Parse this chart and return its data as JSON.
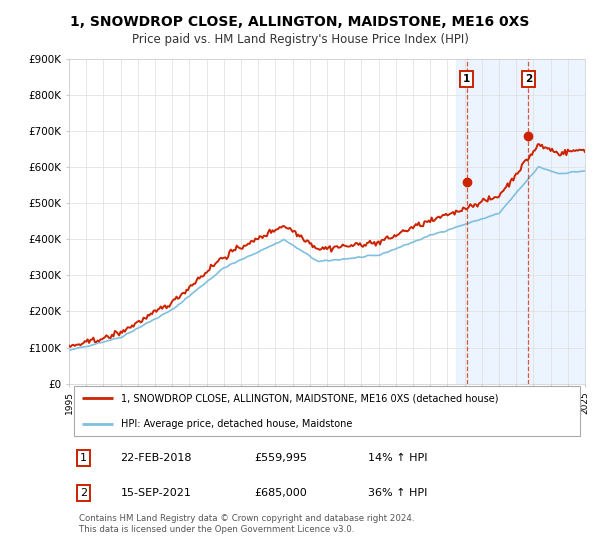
{
  "title": "1, SNOWDROP CLOSE, ALLINGTON, MAIDSTONE, ME16 0XS",
  "subtitle": "Price paid vs. HM Land Registry's House Price Index (HPI)",
  "ylim": [
    0,
    900000
  ],
  "yticks": [
    0,
    100000,
    200000,
    300000,
    400000,
    500000,
    600000,
    700000,
    800000,
    900000
  ],
  "ytick_labels": [
    "£0",
    "£100K",
    "£200K",
    "£300K",
    "£400K",
    "£500K",
    "£600K",
    "£700K",
    "£800K",
    "£900K"
  ],
  "hpi_color": "#7fbfdf",
  "price_color": "#cc2200",
  "marker1_date": 2018.12,
  "marker1_price": 559995,
  "marker2_date": 2021.71,
  "marker2_price": 685000,
  "shaded_color": "#ddeeff",
  "shaded_alpha": 0.55,
  "legend_line1": "1, SNOWDROP CLOSE, ALLINGTON, MAIDSTONE, ME16 0XS (detached house)",
  "legend_line2": "HPI: Average price, detached house, Maidstone",
  "table_row1": [
    "1",
    "22-FEB-2018",
    "£559,995",
    "14% ↑ HPI"
  ],
  "table_row2": [
    "2",
    "15-SEP-2021",
    "£685,000",
    "36% ↑ HPI"
  ],
  "footer": "Contains HM Land Registry data © Crown copyright and database right 2024.\nThis data is licensed under the Open Government Licence v3.0.",
  "title_fontsize": 10,
  "subtitle_fontsize": 8.5,
  "background_color": "#ffffff",
  "grid_color": "#dddddd"
}
